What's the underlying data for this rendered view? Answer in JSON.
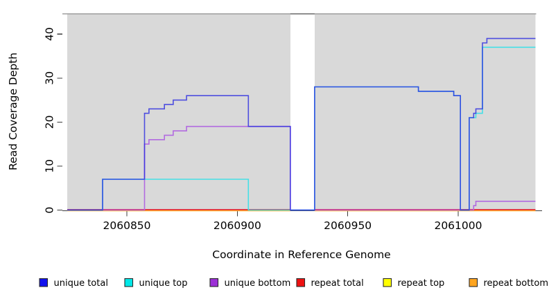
{
  "chart_data": {
    "type": "line",
    "subtype": "step-coverage",
    "title": "",
    "xlabel": "Coordinate in Reference Genome",
    "ylabel": "Read Coverage Depth",
    "xlim": [
      2060823,
      2061035
    ],
    "ylim": [
      0,
      44.6
    ],
    "x_ticks": [
      2060850,
      2060900,
      2060950,
      2061000
    ],
    "y_ticks": [
      0,
      10,
      20,
      30,
      40
    ],
    "grid": false,
    "legend_position": "bottom",
    "background": {
      "plot_fill": "#d9d9d9",
      "gap_region_x": [
        2060924,
        2060935
      ],
      "gap_fill": "#ffffff",
      "top_border_color": "#9e9e9e",
      "top_border_gap_color": "#7c7c7c",
      "axis_color": "#3c3c3c"
    },
    "series": [
      {
        "name": "unique total",
        "color": "#2a2ae0",
        "legend_fill": "#1111ee",
        "segments": [
          [
            [
              2060823,
              0
            ],
            [
              2060839,
              0
            ],
            [
              2060839,
              7
            ],
            [
              2060858,
              7
            ],
            [
              2060858,
              22
            ],
            [
              2060860,
              22
            ],
            [
              2060860,
              23
            ],
            [
              2060867,
              23
            ],
            [
              2060867,
              24
            ],
            [
              2060871,
              24
            ],
            [
              2060871,
              25
            ],
            [
              2060877,
              25
            ],
            [
              2060877,
              26
            ],
            [
              2060905,
              26
            ],
            [
              2060905,
              19
            ],
            [
              2060924,
              19
            ],
            [
              2060924,
              0
            ],
            [
              2060935,
              0
            ],
            [
              2060935,
              28
            ],
            [
              2060982,
              28
            ],
            [
              2060982,
              27
            ],
            [
              2060998,
              27
            ],
            [
              2060998,
              26
            ],
            [
              2061001,
              26
            ],
            [
              2061001,
              0
            ],
            [
              2061005,
              0
            ],
            [
              2061005,
              21
            ],
            [
              2061007,
              21
            ],
            [
              2061007,
              22
            ],
            [
              2061008,
              22
            ],
            [
              2061008,
              23
            ],
            [
              2061011,
              23
            ],
            [
              2061011,
              38
            ],
            [
              2061013,
              38
            ],
            [
              2061013,
              39
            ],
            [
              2061035,
              39
            ]
          ]
        ]
      },
      {
        "name": "unique top",
        "color": "#45dfe6",
        "legend_fill": "#00e8e8",
        "segments": [
          [
            [
              2060823,
              0
            ],
            [
              2060839,
              0
            ],
            [
              2060839,
              7
            ],
            [
              2060905,
              7
            ],
            [
              2060905,
              0
            ],
            [
              2060935,
              0
            ],
            [
              2060935,
              28
            ],
            [
              2060982,
              28
            ],
            [
              2060982,
              27
            ],
            [
              2060998,
              27
            ],
            [
              2060998,
              26
            ],
            [
              2061001,
              26
            ],
            [
              2061001,
              0
            ],
            [
              2061005,
              0
            ],
            [
              2061005,
              21
            ],
            [
              2061008,
              21
            ],
            [
              2061008,
              22
            ],
            [
              2061011,
              22
            ],
            [
              2061011,
              37
            ],
            [
              2061035,
              37
            ]
          ]
        ]
      },
      {
        "name": "unique bottom",
        "color": "#b26ae0",
        "legend_fill": "#9c2fd6",
        "segments": [
          [
            [
              2060823,
              0
            ],
            [
              2060858,
              0
            ],
            [
              2060858,
              15
            ],
            [
              2060860,
              15
            ],
            [
              2060860,
              16
            ],
            [
              2060867,
              16
            ],
            [
              2060867,
              17
            ],
            [
              2060871,
              17
            ],
            [
              2060871,
              18
            ],
            [
              2060877,
              18
            ],
            [
              2060877,
              19
            ],
            [
              2060924,
              19
            ],
            [
              2060924,
              0
            ],
            [
              2061007,
              0
            ],
            [
              2061007,
              1
            ],
            [
              2061008,
              1
            ],
            [
              2061008,
              2
            ],
            [
              2061035,
              2
            ]
          ]
        ]
      },
      {
        "name": "repeat total",
        "color": "#dd2244",
        "legend_fill": "#ee1111",
        "segments": [
          [
            [
              2060823,
              0
            ],
            [
              2060924,
              0
            ]
          ],
          [
            [
              2060935,
              0
            ],
            [
              2061035,
              0
            ]
          ]
        ]
      },
      {
        "name": "repeat top",
        "color": "#eeee33",
        "legend_fill": "#ffff00",
        "segments": [
          [
            [
              2060823,
              0
            ],
            [
              2060924,
              0
            ]
          ],
          [
            [
              2060935,
              0
            ],
            [
              2061035,
              0
            ]
          ]
        ]
      },
      {
        "name": "repeat bottom",
        "color": "#ff9d26",
        "legend_fill": "#ffa520",
        "segments": [
          [
            [
              2060823,
              0
            ],
            [
              2060924,
              0
            ]
          ],
          [
            [
              2060935,
              0
            ],
            [
              2061035,
              0
            ]
          ]
        ]
      }
    ]
  }
}
